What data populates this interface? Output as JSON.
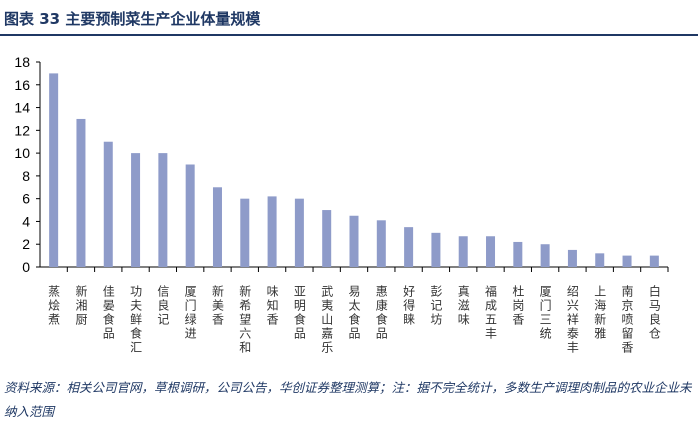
{
  "title": "图表 33  主要预制菜生产企业体量规模",
  "source": "资料来源：相关公司官网，草根调研，公司公告，华创证券整理测算；注：据不完全统计，多数生产调理肉制品的农业企业未纳入范围",
  "chart_data": {
    "type": "bar",
    "categories": [
      "蒸烩煮",
      "新湘厨",
      "佳晏食品",
      "功夫鲜食汇",
      "信良记",
      "厦门绿进",
      "新美香",
      "新希望六和",
      "味知香",
      "亚明食品",
      "武夷山嘉乐",
      "易太食品",
      "惠康食品",
      "好得睐",
      "彭记坊",
      "真滋味",
      "福成五丰",
      "杜岗香",
      "厦门三统",
      "绍兴祥泰丰",
      "上海新雅",
      "南京喷留香",
      "白马良仓"
    ],
    "values": [
      17,
      13,
      11,
      10,
      10,
      9,
      7,
      6,
      6.2,
      6,
      5,
      4.5,
      4.1,
      3.5,
      3,
      2.7,
      2.7,
      2.2,
      2,
      1.5,
      1.2,
      1,
      1
    ],
    "ylim": [
      0,
      18
    ],
    "yticks": [
      0,
      2,
      4,
      6,
      8,
      10,
      12,
      14,
      16,
      18
    ],
    "grid": false,
    "bar_color": "#8e9bc9"
  }
}
